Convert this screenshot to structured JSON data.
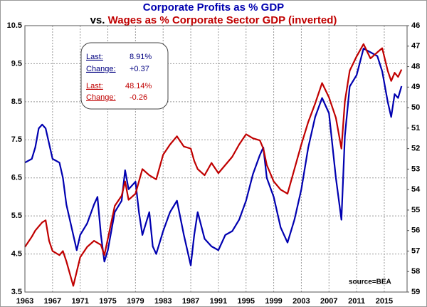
{
  "chart_data": {
    "type": "line",
    "title": "Corporate Profits as % GDP",
    "subtitle_prefix": "vs.",
    "subtitle": "Wages as % Corporate Sector GDP (inverted)",
    "x": [
      1963,
      1964,
      1964.5,
      1965,
      1965.5,
      1966,
      1966.5,
      1967,
      1968,
      1968.5,
      1969,
      1970,
      1970.5,
      1971,
      1972,
      1973,
      1973.5,
      1974,
      1974.5,
      1975,
      1976,
      1977,
      1977.5,
      1978,
      1979,
      1979.5,
      1980,
      1981,
      1981.5,
      1982,
      1983,
      1984,
      1985,
      1986,
      1987,
      1987.5,
      1988,
      1989,
      1990,
      1991,
      1992,
      1993,
      1994,
      1995,
      1996,
      1997,
      1997.5,
      1998,
      1999,
      2000,
      2001,
      2002,
      2003,
      2004,
      2005,
      2006,
      2007,
      2008,
      2008.8,
      2009.3,
      2010,
      2011,
      2012,
      2013,
      2014,
      2014.7,
      2015.5,
      2016,
      2016.5,
      2017,
      2017.5
    ],
    "series": [
      {
        "name": "Corporate Profits as % GDP",
        "color": "#0000b0",
        "axis": "y",
        "values": [
          6.9,
          7.0,
          7.3,
          7.8,
          7.9,
          7.8,
          7.4,
          7.0,
          6.9,
          6.5,
          5.8,
          5.0,
          4.6,
          5.0,
          5.3,
          5.8,
          6.0,
          5.0,
          4.3,
          4.6,
          5.6,
          5.9,
          6.7,
          6.2,
          6.4,
          5.6,
          5.0,
          5.6,
          4.7,
          4.5,
          5.1,
          5.6,
          5.9,
          5.0,
          4.2,
          5.0,
          5.6,
          4.9,
          4.7,
          4.6,
          5.0,
          5.1,
          5.4,
          5.9,
          6.6,
          7.1,
          7.3,
          6.5,
          6.0,
          5.2,
          4.8,
          5.4,
          6.2,
          7.3,
          8.1,
          8.6,
          8.2,
          6.5,
          5.4,
          7.6,
          8.9,
          9.2,
          9.9,
          9.8,
          9.7,
          9.3,
          8.5,
          8.1,
          8.7,
          8.6,
          8.91
        ]
      },
      {
        "name": "Wages as % Corporate Sector GDP (inverted)",
        "color": "#c00000",
        "axis": "y2",
        "values": [
          56.8,
          56.3,
          56.0,
          55.8,
          55.6,
          55.5,
          56.5,
          57.0,
          57.2,
          57.0,
          57.5,
          58.7,
          58.0,
          57.3,
          56.8,
          56.5,
          56.6,
          56.7,
          57.2,
          56.4,
          54.8,
          54.3,
          53.6,
          54.5,
          54.2,
          53.6,
          53.0,
          53.3,
          53.4,
          53.5,
          52.3,
          51.8,
          51.4,
          51.9,
          52.0,
          52.6,
          53.0,
          53.3,
          52.7,
          53.2,
          52.8,
          52.4,
          51.8,
          51.3,
          51.5,
          51.6,
          52.0,
          52.8,
          53.6,
          54.0,
          54.2,
          53.0,
          51.8,
          50.7,
          49.8,
          48.8,
          49.5,
          50.5,
          52.0,
          49.7,
          48.2,
          47.5,
          46.9,
          47.6,
          47.3,
          47.1,
          48.2,
          48.7,
          48.3,
          48.5,
          48.14
        ]
      }
    ],
    "xlim": [
      1963,
      2018.3
    ],
    "xticks": [
      1963,
      1967,
      1971,
      1975,
      1979,
      1983,
      1987,
      1991,
      1995,
      1999,
      2003,
      2007,
      2011,
      2015
    ],
    "ylim": [
      3.5,
      10.5
    ],
    "yticks": [
      3.5,
      4.5,
      5.5,
      6.5,
      7.5,
      8.5,
      9.5,
      10.5
    ],
    "y2lim": [
      46,
      59
    ],
    "y2_inverted": true,
    "y2ticks": [
      46,
      47,
      48,
      49,
      50,
      51,
      52,
      53,
      54,
      55,
      56,
      57,
      58,
      59
    ],
    "grid": true,
    "annotations": {
      "profits": {
        "last_label": "Last:",
        "last": "8.91%",
        "change_label": "Change:",
        "change": "+0.37"
      },
      "wages": {
        "last_label": "Last:",
        "last": "48.14%",
        "change_label": "Change:",
        "change": "-0.26"
      }
    },
    "source": "source=BEA"
  }
}
